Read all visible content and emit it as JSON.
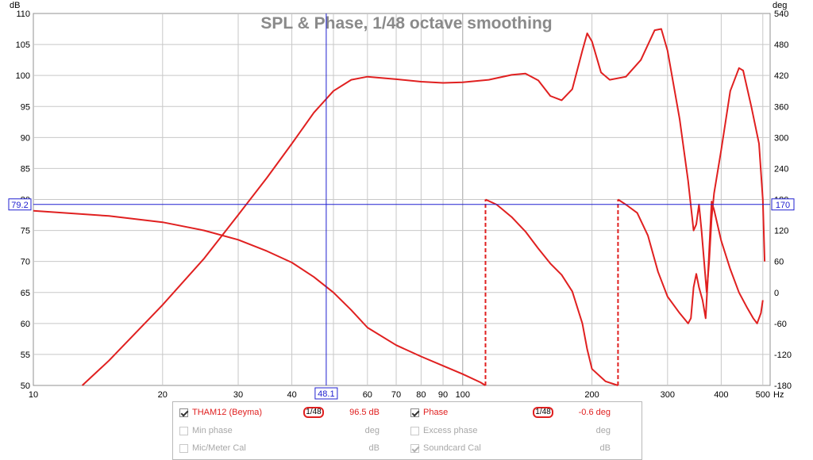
{
  "chart_data": {
    "type": "line",
    "title": "SPL & Phase, 1/48 octave smoothing",
    "x_unit": "Hz",
    "x_scale": "log",
    "xlim": [
      10,
      520
    ],
    "x_ticks": [
      "10",
      "20",
      "30",
      "40",
      "60",
      "70",
      "80",
      "90",
      "100",
      "200",
      "300",
      "400",
      "500"
    ],
    "ylabel_left": "dB",
    "ylim_left": [
      50,
      110
    ],
    "y_ticks_left": [
      "50",
      "55",
      "60",
      "65",
      "70",
      "75",
      "80",
      "85",
      "90",
      "95",
      "100",
      "105",
      "110"
    ],
    "ylabel_right": "deg",
    "ylim_right": [
      -180,
      540
    ],
    "y_ticks_right": [
      "-180",
      "-120",
      "-60",
      "0",
      "60",
      "120",
      "180",
      "240",
      "300",
      "360",
      "420",
      "480",
      "540"
    ],
    "grid": true,
    "cursor": {
      "x": "48.1",
      "y_left": "79.2",
      "y_right": "170"
    },
    "series": [
      {
        "name": "THAM12 (Beyma)",
        "axis": "left",
        "color": "#e02020",
        "points": [
          [
            13,
            50
          ],
          [
            15,
            54
          ],
          [
            20,
            63
          ],
          [
            25,
            70.5
          ],
          [
            30,
            77.5
          ],
          [
            35,
            83.5
          ],
          [
            40,
            89
          ],
          [
            45,
            94
          ],
          [
            50,
            97.5
          ],
          [
            55,
            99.3
          ],
          [
            60,
            99.8
          ],
          [
            70,
            99.4
          ],
          [
            80,
            99
          ],
          [
            90,
            98.8
          ],
          [
            100,
            98.9
          ],
          [
            115,
            99.3
          ],
          [
            130,
            100.1
          ],
          [
            140,
            100.3
          ],
          [
            150,
            99.2
          ],
          [
            160,
            96.7
          ],
          [
            170,
            96
          ],
          [
            180,
            97.8
          ],
          [
            190,
            104
          ],
          [
            195,
            106.8
          ],
          [
            200,
            105.5
          ],
          [
            210,
            100.5
          ],
          [
            220,
            99.3
          ],
          [
            240,
            99.8
          ],
          [
            260,
            102.5
          ],
          [
            280,
            107.3
          ],
          [
            290,
            107.5
          ],
          [
            300,
            104
          ],
          [
            320,
            93
          ],
          [
            335,
            83
          ],
          [
            345,
            75
          ],
          [
            350,
            76
          ],
          [
            355,
            79.2
          ],
          [
            360,
            75
          ],
          [
            370,
            65
          ],
          [
            375,
            70
          ],
          [
            380,
            77
          ],
          [
            385,
            81
          ],
          [
            400,
            88
          ],
          [
            420,
            97.5
          ],
          [
            440,
            101.2
          ],
          [
            450,
            100.8
          ],
          [
            470,
            95
          ],
          [
            490,
            89
          ],
          [
            500,
            80
          ],
          [
            505,
            70
          ]
        ]
      },
      {
        "name": "Phase",
        "axis": "right",
        "color": "#e02020",
        "points": [
          [
            10,
            158
          ],
          [
            15,
            148
          ],
          [
            20,
            136
          ],
          [
            25,
            120
          ],
          [
            30,
            102
          ],
          [
            35,
            80
          ],
          [
            40,
            58
          ],
          [
            45,
            30
          ],
          [
            50,
            0
          ],
          [
            55,
            -34
          ],
          [
            60,
            -68
          ],
          [
            70,
            -102
          ],
          [
            80,
            -124
          ],
          [
            90,
            -142
          ],
          [
            100,
            -158
          ],
          [
            110,
            -174
          ],
          [
            113,
            -180
          ],
          [
            113,
            180
          ],
          [
            120,
            170
          ],
          [
            130,
            146
          ],
          [
            140,
            118
          ],
          [
            150,
            85
          ],
          [
            160,
            56
          ],
          [
            170,
            34
          ],
          [
            180,
            2
          ],
          [
            190,
            -60
          ],
          [
            195,
            -110
          ],
          [
            200,
            -148
          ],
          [
            215,
            -172
          ],
          [
            230,
            -180
          ],
          [
            230,
            180
          ],
          [
            240,
            170
          ],
          [
            255,
            154
          ],
          [
            270,
            110
          ],
          [
            285,
            40
          ],
          [
            300,
            -8
          ],
          [
            320,
            -40
          ],
          [
            335,
            -60
          ],
          [
            340,
            -50
          ],
          [
            345,
            10
          ],
          [
            350,
            36
          ],
          [
            355,
            10
          ],
          [
            362,
            -15
          ],
          [
            368,
            -50
          ],
          [
            372,
            20
          ],
          [
            380,
            176
          ],
          [
            385,
            160
          ],
          [
            400,
            100
          ],
          [
            420,
            45
          ],
          [
            440,
            0
          ],
          [
            460,
            -30
          ],
          [
            475,
            -50
          ],
          [
            485,
            -60
          ],
          [
            495,
            -40
          ],
          [
            500,
            -15
          ]
        ]
      }
    ]
  },
  "legend": {
    "rows": [
      [
        {
          "label": "THAM12 (Beyma)",
          "checked": true,
          "enabled": true,
          "smoothing": "1/48",
          "value": "96.5 dB"
        },
        {
          "label": "Phase",
          "checked": true,
          "enabled": true,
          "smoothing": "1/48",
          "value": "-0.6 deg"
        }
      ],
      [
        {
          "label": "Min phase",
          "checked": false,
          "enabled": false,
          "value": "deg"
        },
        {
          "label": "Excess phase",
          "checked": false,
          "enabled": false,
          "value": "deg"
        }
      ],
      [
        {
          "label": "Mic/Meter Cal",
          "checked": false,
          "enabled": false,
          "value": "dB"
        },
        {
          "label": "Soundcard Cal",
          "checked": true,
          "enabled": false,
          "value": "dB"
        }
      ]
    ]
  },
  "colors": {
    "trace": "#e02020",
    "cursor": "#2020d0",
    "grid": "#c8c8c8",
    "title": "#8a8a8a"
  }
}
